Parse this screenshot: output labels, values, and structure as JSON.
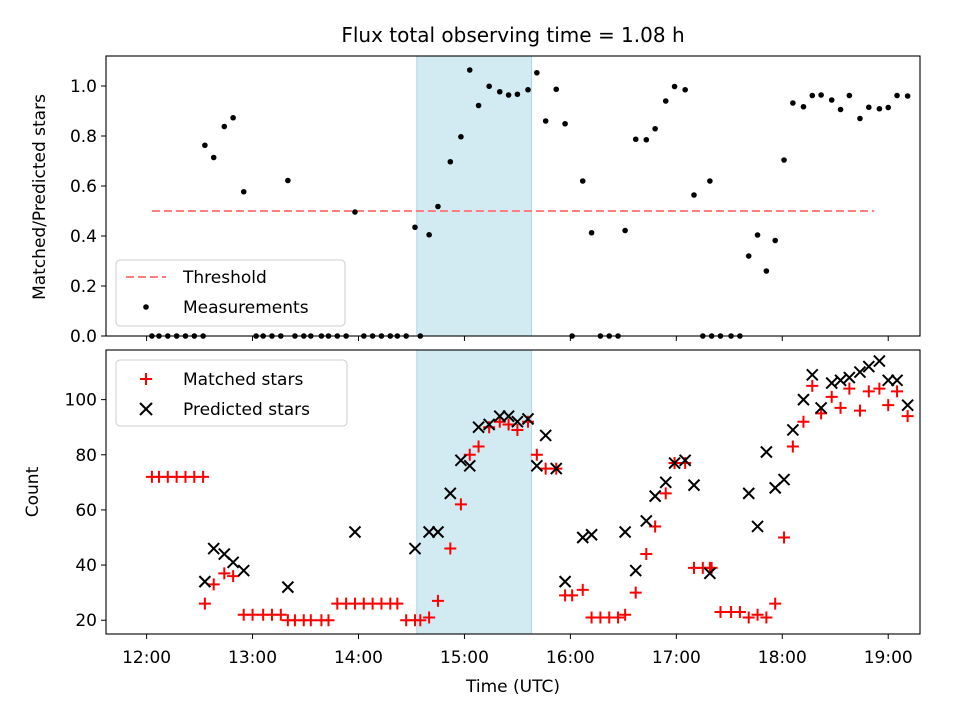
{
  "chart_data": [
    {
      "type": "scatter",
      "title": "Flux total observing time = 1.08 h",
      "xlabel": "",
      "ylabel": "Matched/Predicted stars",
      "ylim": [
        0,
        1.12
      ],
      "yticks": [
        0.0,
        0.2,
        0.4,
        0.6,
        0.8,
        1.0
      ],
      "ytick_labels": [
        "0.0",
        "0.2",
        "0.4",
        "0.6",
        "0.8",
        "1.0"
      ],
      "highlight_span": {
        "x_start": "14:33",
        "x_end": "15:38",
        "color": "#add8e6"
      },
      "legend_position": "lower-left",
      "threshold": {
        "name": "Threshold",
        "value": 0.5,
        "x_start": "12:03",
        "x_end": "18:52",
        "color": "#ff7f7f"
      },
      "series": [
        {
          "name": "Measurements",
          "color": "#000000",
          "points": [
            [
              "12:03",
              0
            ],
            [
              "12:07",
              0
            ],
            [
              "12:12",
              0
            ],
            [
              "12:17",
              0
            ],
            [
              "12:22",
              0
            ],
            [
              "12:27",
              0
            ],
            [
              "12:32",
              0
            ],
            [
              "12:33",
              0.763
            ],
            [
              "12:38",
              0.714
            ],
            [
              "12:44",
              0.838
            ],
            [
              "12:49",
              0.873
            ],
            [
              "12:55",
              0.577
            ],
            [
              "13:02",
              0
            ],
            [
              "13:06",
              0
            ],
            [
              "13:11",
              0
            ],
            [
              "13:16",
              0
            ],
            [
              "13:20",
              0.622
            ],
            [
              "13:24",
              0
            ],
            [
              "13:29",
              0
            ],
            [
              "13:33",
              0
            ],
            [
              "13:39",
              0
            ],
            [
              "13:43",
              0
            ],
            [
              "13:48",
              0
            ],
            [
              "13:53",
              0
            ],
            [
              "13:58",
              0.496
            ],
            [
              "14:03",
              0
            ],
            [
              "14:08",
              0
            ],
            [
              "14:13",
              0
            ],
            [
              "14:18",
              0
            ],
            [
              "14:22",
              0
            ],
            [
              "14:27",
              0
            ],
            [
              "14:32",
              0.435
            ],
            [
              "14:35",
              0
            ],
            [
              "14:40",
              0.405
            ],
            [
              "14:45",
              0.518
            ],
            [
              "14:52",
              0.697
            ],
            [
              "14:58",
              0.797
            ],
            [
              "15:03",
              1.064
            ],
            [
              "15:08",
              0.922
            ],
            [
              "15:14",
              0.999
            ],
            [
              "15:20",
              0.977
            ],
            [
              "15:25",
              0.964
            ],
            [
              "15:30",
              0.967
            ],
            [
              "15:36",
              0.985
            ],
            [
              "15:41",
              1.053
            ],
            [
              "15:46",
              0.86
            ],
            [
              "15:52",
              0.987
            ],
            [
              "15:57",
              0.849
            ],
            [
              "16:01",
              0
            ],
            [
              "16:07",
              0.62
            ],
            [
              "16:12",
              0.413
            ],
            [
              "16:17",
              0
            ],
            [
              "16:22",
              0
            ],
            [
              "16:27",
              0
            ],
            [
              "16:31",
              0.422
            ],
            [
              "16:37",
              0.787
            ],
            [
              "16:43",
              0.785
            ],
            [
              "16:48",
              0.829
            ],
            [
              "16:54",
              0.94
            ],
            [
              "16:59",
              0.998
            ],
            [
              "17:05",
              0.985
            ],
            [
              "17:10",
              0.564
            ],
            [
              "17:15",
              0
            ],
            [
              "17:19",
              0.62
            ],
            [
              "17:20",
              0
            ],
            [
              "17:25",
              0
            ],
            [
              "17:31",
              0
            ],
            [
              "17:36",
              0
            ],
            [
              "17:41",
              0.32
            ],
            [
              "17:46",
              0.404
            ],
            [
              "17:51",
              0.26
            ],
            [
              "17:56",
              0.382
            ],
            [
              "18:01",
              0.704
            ],
            [
              "18:06",
              0.932
            ],
            [
              "18:12",
              0.917
            ],
            [
              "18:17",
              0.962
            ],
            [
              "18:22",
              0.964
            ],
            [
              "18:28",
              0.944
            ],
            [
              "18:33",
              0.906
            ],
            [
              "18:38",
              0.962
            ],
            [
              "18:44",
              0.87
            ],
            [
              "18:49",
              0.915
            ],
            [
              "18:55",
              0.909
            ],
            [
              "19:00",
              0.914
            ],
            [
              "19:05",
              0.962
            ],
            [
              "19:11",
              0.96
            ]
          ]
        }
      ]
    },
    {
      "type": "scatter",
      "title": "",
      "xlabel": "Time (UTC)",
      "ylabel": "Count",
      "ylim": [
        15,
        118
      ],
      "yticks": [
        20,
        40,
        60,
        80,
        100
      ],
      "ytick_labels": [
        "20",
        "40",
        "60",
        "80",
        "100"
      ],
      "xticks": [
        "12:00",
        "13:00",
        "14:00",
        "15:00",
        "16:00",
        "17:00",
        "18:00",
        "19:00"
      ],
      "xlim": [
        "11:37",
        "19:18"
      ],
      "highlight_span": {
        "x_start": "14:33",
        "x_end": "15:38",
        "color": "#add8e6"
      },
      "legend_position": "upper-left",
      "series": [
        {
          "name": "Matched stars",
          "marker": "plus",
          "color": "#ff0000",
          "points": [
            [
              "12:03",
              72
            ],
            [
              "12:07",
              72
            ],
            [
              "12:12",
              72
            ],
            [
              "12:17",
              72
            ],
            [
              "12:22",
              72
            ],
            [
              "12:27",
              72
            ],
            [
              "12:32",
              72
            ],
            [
              "12:33",
              26
            ],
            [
              "12:38",
              33
            ],
            [
              "12:44",
              37
            ],
            [
              "12:49",
              36
            ],
            [
              "12:55",
              22
            ],
            [
              "13:00",
              22
            ],
            [
              "13:06",
              22
            ],
            [
              "13:11",
              22
            ],
            [
              "13:16",
              22
            ],
            [
              "13:20",
              20
            ],
            [
              "13:24",
              20
            ],
            [
              "13:29",
              20
            ],
            [
              "13:33",
              20
            ],
            [
              "13:39",
              20
            ],
            [
              "13:43",
              20
            ],
            [
              "13:48",
              26
            ],
            [
              "13:53",
              26
            ],
            [
              "13:58",
              26
            ],
            [
              "14:03",
              26
            ],
            [
              "14:08",
              26
            ],
            [
              "14:13",
              26
            ],
            [
              "14:18",
              26
            ],
            [
              "14:22",
              26
            ],
            [
              "14:27",
              20
            ],
            [
              "14:32",
              20
            ],
            [
              "14:35",
              20
            ],
            [
              "14:40",
              21
            ],
            [
              "14:45",
              27
            ],
            [
              "14:52",
              46
            ],
            [
              "14:58",
              62
            ],
            [
              "15:03",
              80
            ],
            [
              "15:08",
              83
            ],
            [
              "15:14",
              90
            ],
            [
              "15:20",
              92
            ],
            [
              "15:25",
              91
            ],
            [
              "15:30",
              89
            ],
            [
              "15:36",
              92
            ],
            [
              "15:41",
              80
            ],
            [
              "15:46",
              75
            ],
            [
              "15:52",
              75
            ],
            [
              "15:57",
              29
            ],
            [
              "16:01",
              29
            ],
            [
              "16:07",
              31
            ],
            [
              "16:12",
              21
            ],
            [
              "16:17",
              21
            ],
            [
              "16:22",
              21
            ],
            [
              "16:27",
              21
            ],
            [
              "16:31",
              22
            ],
            [
              "16:37",
              30
            ],
            [
              "16:43",
              44
            ],
            [
              "16:48",
              54
            ],
            [
              "16:54",
              66
            ],
            [
              "16:59",
              77
            ],
            [
              "17:05",
              77
            ],
            [
              "17:10",
              39
            ],
            [
              "17:15",
              39
            ],
            [
              "17:19",
              39
            ],
            [
              "17:20",
              39
            ],
            [
              "17:25",
              23
            ],
            [
              "17:31",
              23
            ],
            [
              "17:36",
              23
            ],
            [
              "17:41",
              21
            ],
            [
              "17:46",
              22
            ],
            [
              "17:51",
              21
            ],
            [
              "17:56",
              26
            ],
            [
              "18:01",
              50
            ],
            [
              "18:06",
              83
            ],
            [
              "18:12",
              92
            ],
            [
              "18:17",
              105
            ],
            [
              "18:22",
              95
            ],
            [
              "18:28",
              101
            ],
            [
              "18:33",
              97
            ],
            [
              "18:38",
              104
            ],
            [
              "18:44",
              96
            ],
            [
              "18:49",
              103
            ],
            [
              "18:55",
              104
            ],
            [
              "19:00",
              98
            ],
            [
              "19:05",
              103
            ],
            [
              "19:11",
              94
            ]
          ]
        },
        {
          "name": "Predicted stars",
          "marker": "x",
          "color": "#000000",
          "points": [
            [
              "12:33",
              34
            ],
            [
              "12:38",
              46
            ],
            [
              "12:44",
              44
            ],
            [
              "12:49",
              41
            ],
            [
              "12:55",
              38
            ],
            [
              "13:20",
              32
            ],
            [
              "13:58",
              52
            ],
            [
              "14:32",
              46
            ],
            [
              "14:40",
              52
            ],
            [
              "14:45",
              52
            ],
            [
              "14:52",
              66
            ],
            [
              "14:58",
              78
            ],
            [
              "15:03",
              76
            ],
            [
              "15:08",
              90
            ],
            [
              "15:14",
              91
            ],
            [
              "15:20",
              94
            ],
            [
              "15:25",
              94
            ],
            [
              "15:30",
              92
            ],
            [
              "15:36",
              93
            ],
            [
              "15:41",
              76
            ],
            [
              "15:46",
              87
            ],
            [
              "15:52",
              75
            ],
            [
              "15:57",
              34
            ],
            [
              "16:07",
              50
            ],
            [
              "16:12",
              51
            ],
            [
              "16:31",
              52
            ],
            [
              "16:37",
              38
            ],
            [
              "16:43",
              56
            ],
            [
              "16:48",
              65
            ],
            [
              "16:54",
              70
            ],
            [
              "16:59",
              77
            ],
            [
              "17:05",
              78
            ],
            [
              "17:10",
              69
            ],
            [
              "17:19",
              37
            ],
            [
              "17:41",
              66
            ],
            [
              "17:46",
              54
            ],
            [
              "17:51",
              81
            ],
            [
              "17:56",
              68
            ],
            [
              "18:01",
              71
            ],
            [
              "18:06",
              89
            ],
            [
              "18:12",
              100
            ],
            [
              "18:17",
              109
            ],
            [
              "18:22",
              97
            ],
            [
              "18:28",
              106
            ],
            [
              "18:33",
              107
            ],
            [
              "18:38",
              108
            ],
            [
              "18:44",
              110
            ],
            [
              "18:49",
              112
            ],
            [
              "18:55",
              114
            ],
            [
              "19:00",
              107
            ],
            [
              "19:05",
              107
            ],
            [
              "19:11",
              98
            ]
          ]
        }
      ]
    }
  ]
}
